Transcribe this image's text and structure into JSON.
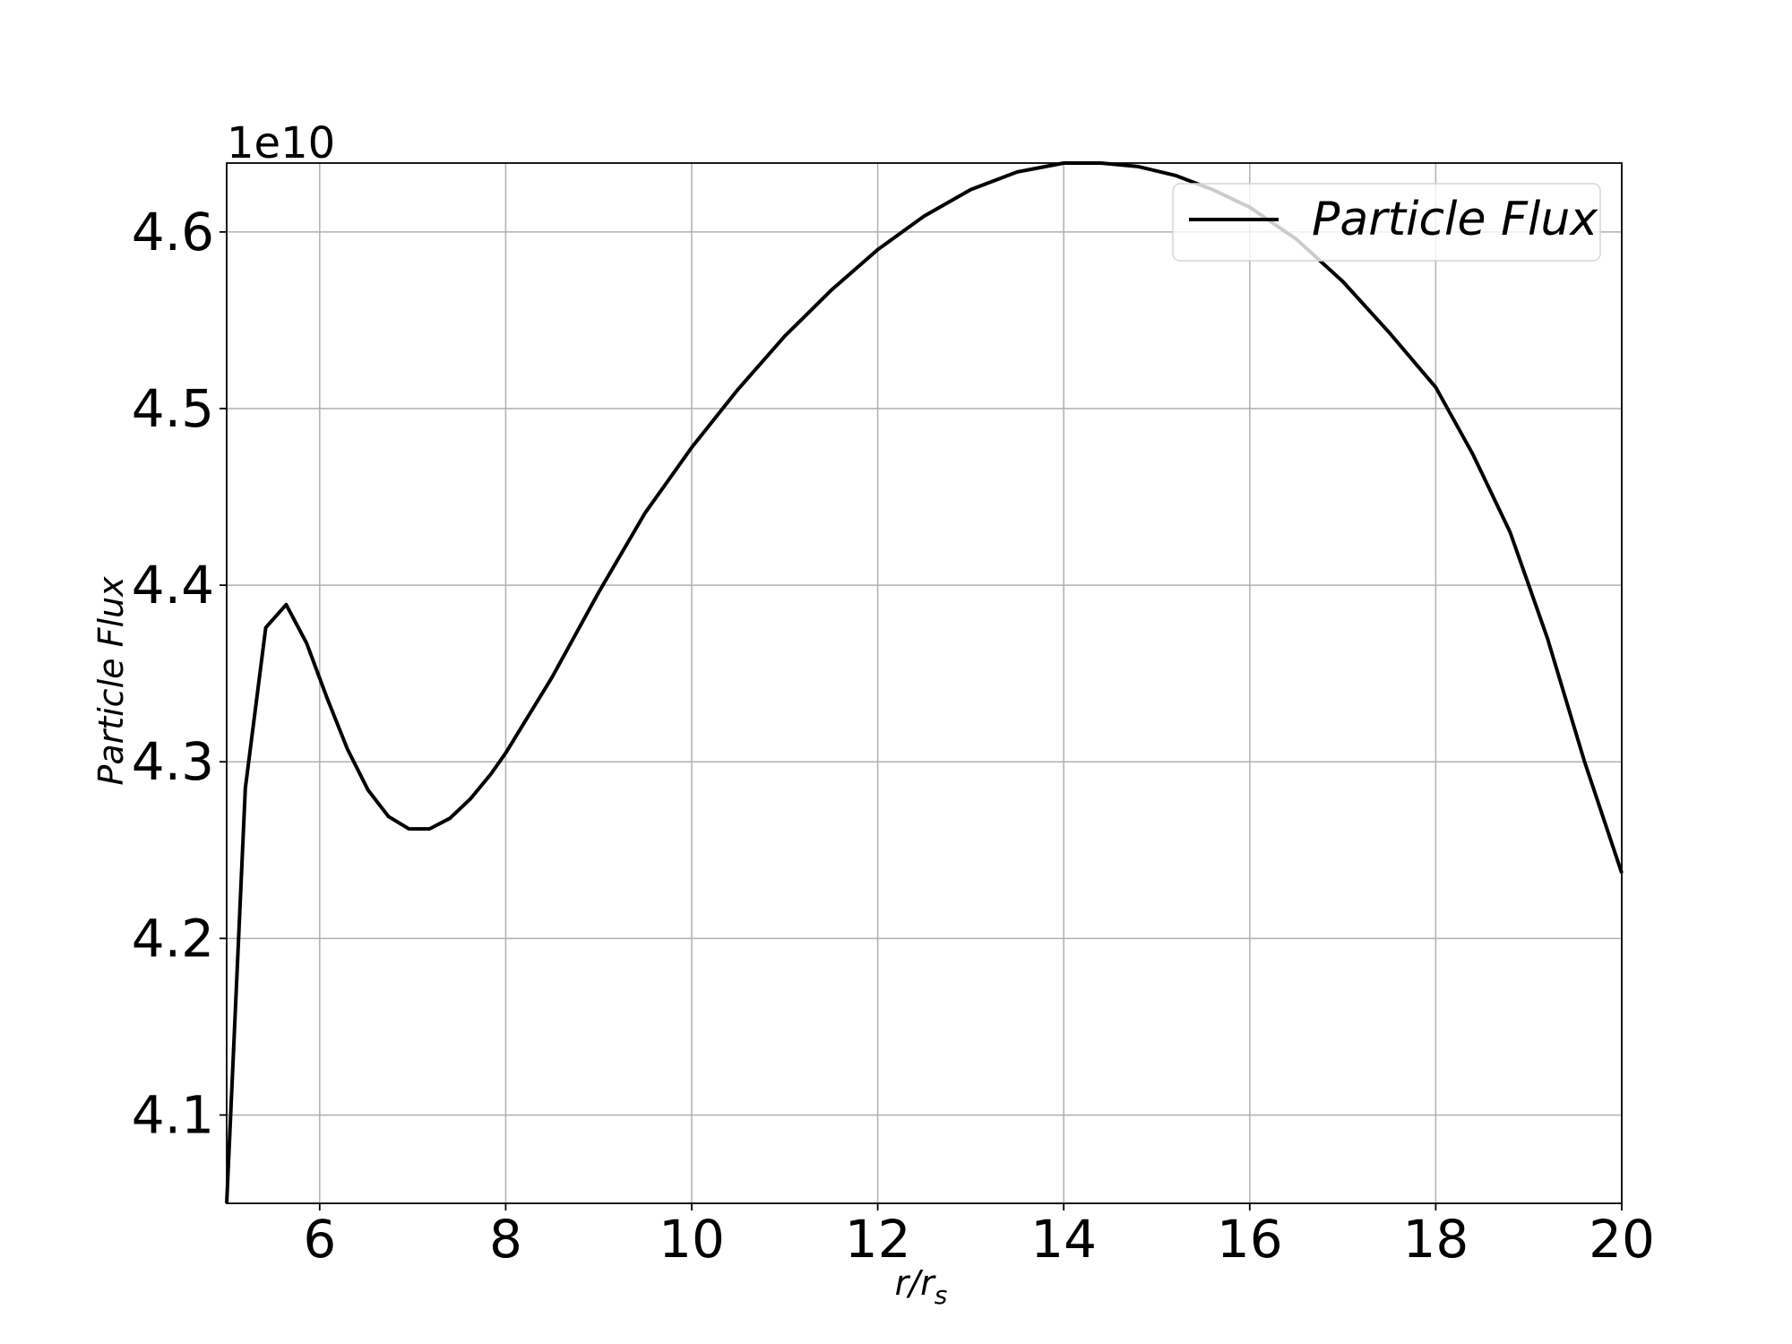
{
  "chart_data": {
    "type": "line",
    "xlabel": "r/r",
    "xlabel_sub": "s",
    "ylabel": "Particle Flux",
    "y_offset_label": "1e10",
    "y_scale": 10000000000.0,
    "xlim": [
      5,
      20
    ],
    "ylim": [
      4.05,
      4.639
    ],
    "x_ticks": [
      6,
      8,
      10,
      12,
      14,
      16,
      18,
      20
    ],
    "x_tick_labels": [
      "6",
      "8",
      "10",
      "12",
      "14",
      "16",
      "18",
      "20"
    ],
    "y_ticks": [
      4.1,
      4.2,
      4.3,
      4.4,
      4.5,
      4.6
    ],
    "y_tick_labels": [
      "4.1",
      "4.2",
      "4.3",
      "4.4",
      "4.5",
      "4.6"
    ],
    "grid": true,
    "legend_position": "top-right",
    "series": [
      {
        "name": "Particle Flux",
        "color": "#000000",
        "x": [
          5.0,
          5.2,
          5.42,
          5.64,
          5.86,
          6.08,
          6.3,
          6.52,
          6.74,
          6.96,
          7.18,
          7.4,
          7.62,
          7.84,
          8.0,
          8.5,
          9.0,
          9.5,
          10.0,
          10.5,
          11.0,
          11.5,
          12.0,
          12.5,
          13.0,
          13.5,
          14.0,
          14.4,
          14.8,
          15.2,
          15.6,
          16.0,
          16.5,
          17.0,
          17.5,
          18.0,
          18.4,
          18.8,
          19.2,
          19.6,
          20.0
        ],
        "y": [
          4.05,
          4.285,
          4.376,
          4.389,
          4.367,
          4.336,
          4.307,
          4.284,
          4.269,
          4.262,
          4.262,
          4.268,
          4.279,
          4.293,
          4.305,
          4.348,
          4.396,
          4.441,
          4.478,
          4.511,
          4.541,
          4.567,
          4.59,
          4.609,
          4.624,
          4.634,
          4.639,
          4.639,
          4.637,
          4.632,
          4.624,
          4.614,
          4.596,
          4.572,
          4.543,
          4.512,
          4.474,
          4.43,
          4.37,
          4.3,
          4.237
        ]
      }
    ]
  }
}
